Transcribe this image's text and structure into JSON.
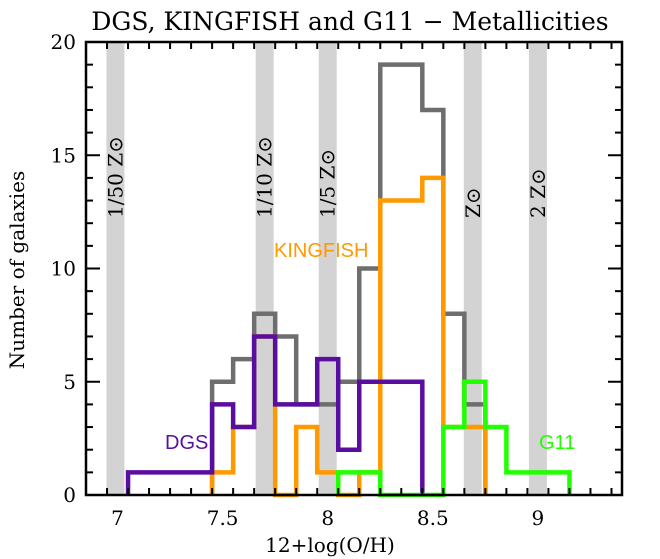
{
  "chart_data": {
    "type": "histogram",
    "title": "DGS, KINGFISH and G11 − Metallicities",
    "xlabel": "12+log(O/H)",
    "ylabel": "Number of galaxies",
    "xlim": [
      6.85,
      9.4
    ],
    "ylim": [
      0,
      20
    ],
    "x_ticks": [
      7,
      7.5,
      8,
      8.5,
      9
    ],
    "x_tick_labels": [
      "7",
      "7.5",
      "8",
      "8.5",
      "9"
    ],
    "y_ticks": [
      0,
      5,
      10,
      15,
      20
    ],
    "y_tick_labels": [
      "0",
      "5",
      "10",
      "15",
      "20"
    ],
    "grid": false,
    "reference_bands": [
      {
        "x": 6.99,
        "label": "1/50 Z⊙"
      },
      {
        "x": 7.7,
        "label": "1/10 Z⊙"
      },
      {
        "x": 8.0,
        "label": "1/5 Z⊙"
      },
      {
        "x": 8.69,
        "label": "Z⊙"
      },
      {
        "x": 9.0,
        "label": "2 Z⊙"
      }
    ],
    "band_color": "#d3d3d3",
    "series": [
      {
        "name": "",
        "color": "#6e6e6e",
        "edges": [
          7.45,
          7.55,
          7.65,
          7.75,
          7.85,
          7.95,
          8.05,
          8.15,
          8.25,
          8.35,
          8.45,
          8.55,
          8.65,
          8.75
        ],
        "values": [
          5,
          6,
          8,
          7,
          4,
          4,
          5,
          10,
          19,
          19,
          17,
          8,
          4
        ]
      },
      {
        "name": "KINGFISH",
        "color": "#ff9900",
        "edges": [
          7.45,
          7.55,
          7.65,
          7.75,
          7.85,
          7.95,
          8.05,
          8.15,
          8.25,
          8.35,
          8.45,
          8.55,
          8.65,
          8.75
        ],
        "values": [
          1,
          3,
          7,
          0,
          3,
          1,
          0,
          1,
          13,
          13,
          14,
          3,
          3
        ]
      },
      {
        "name": "DGS",
        "color": "#5a0ea0",
        "edges": [
          7.05,
          7.15,
          7.25,
          7.35,
          7.45,
          7.55,
          7.65,
          7.75,
          7.85,
          7.95,
          8.05,
          8.15,
          8.25,
          8.35,
          8.45
        ],
        "values": [
          1,
          1,
          1,
          1,
          4,
          3,
          7,
          4,
          4,
          6,
          2,
          5,
          5,
          5
        ]
      },
      {
        "name": "G11",
        "color": "#22ff00",
        "edges": [
          8.05,
          8.15,
          8.25,
          8.35,
          8.45,
          8.55,
          8.65,
          8.75,
          8.85,
          8.95,
          9.05,
          9.15
        ],
        "values": [
          1,
          1,
          0,
          0,
          0,
          3,
          5,
          3,
          1,
          1,
          1
        ]
      }
    ]
  }
}
